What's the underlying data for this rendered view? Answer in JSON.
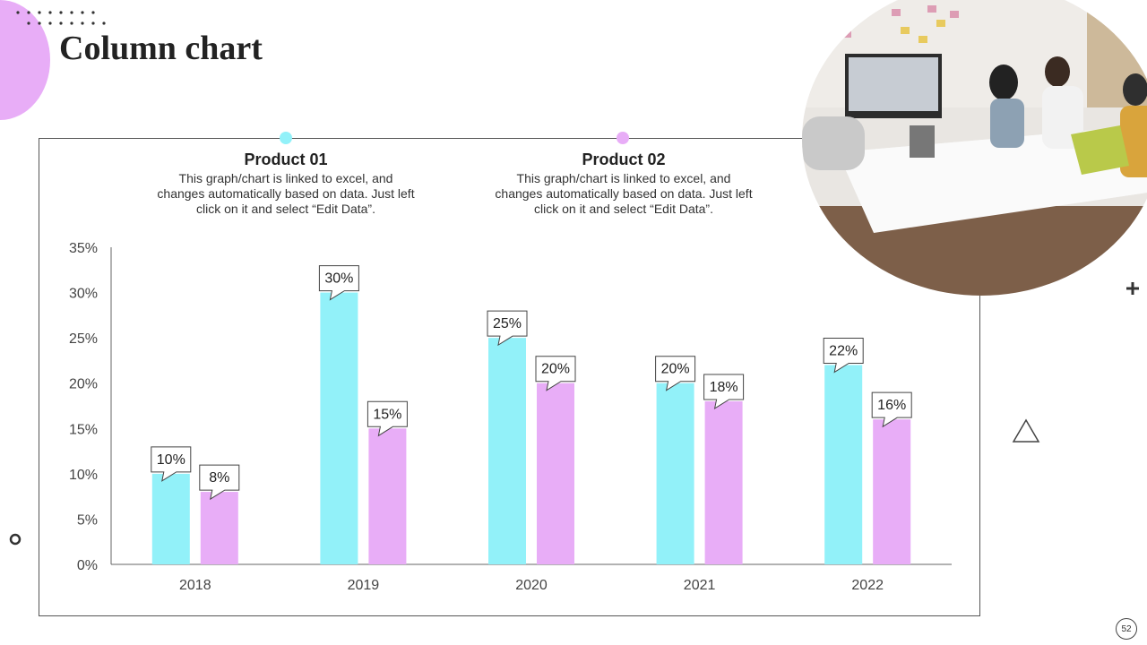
{
  "slide": {
    "title": "Column chart",
    "page_number": "52"
  },
  "colors": {
    "product1": "#92F1F9",
    "product2": "#E8ADF7",
    "accent_pink": "#E8ADF7",
    "accent_cyan": "#92F1F9"
  },
  "legend": [
    {
      "name": "Product 01",
      "description": "This graph/chart is linked to excel, and changes automatically based on data. Just left click on it and select “Edit Data”."
    },
    {
      "name": "Product 02",
      "description": "This graph/chart is linked to excel, and changes automatically based on data. Just left click on it and select “Edit Data”."
    }
  ],
  "chart_data": {
    "type": "bar",
    "title": "",
    "categories": [
      "2018",
      "2019",
      "2020",
      "2021",
      "2022"
    ],
    "series": [
      {
        "name": "Product 01",
        "values": [
          10,
          30,
          25,
          20,
          22
        ],
        "labels": [
          "10%",
          "30%",
          "25%",
          "20%",
          "22%"
        ]
      },
      {
        "name": "Product 02",
        "values": [
          8,
          15,
          20,
          18,
          16
        ],
        "labels": [
          "8%",
          "15%",
          "20%",
          "18%",
          "16%"
        ]
      }
    ],
    "ylim": [
      0,
      35
    ],
    "yticks": [
      0,
      5,
      10,
      15,
      20,
      25,
      30,
      35
    ],
    "ytick_labels": [
      "0%",
      "5%",
      "10%",
      "15%",
      "20%",
      "25%",
      "30%",
      "35%"
    ],
    "xlabel": "",
    "ylabel": "",
    "grid": false
  }
}
